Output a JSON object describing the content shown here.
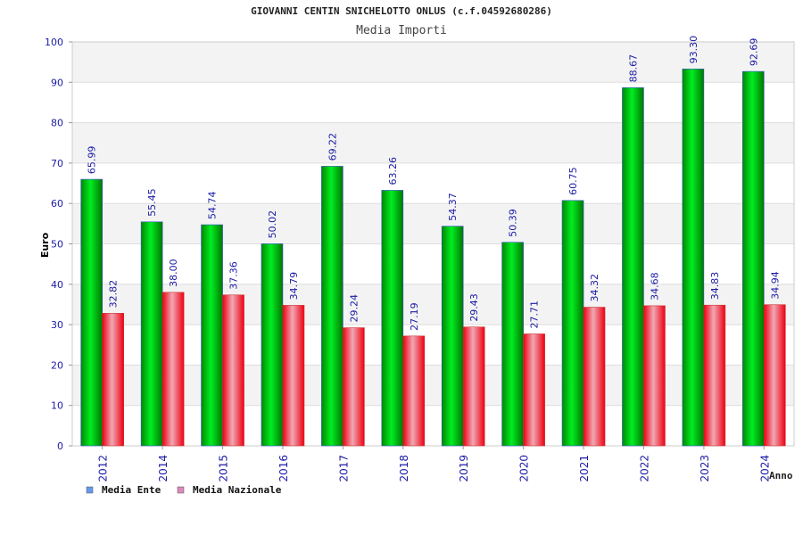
{
  "chart_data": {
    "type": "bar",
    "title": "GIOVANNI CENTIN SNICHELOTTO ONLUS (c.f.04592680286)",
    "subtitle": "Media Importi",
    "xlabel": "Anno",
    "ylabel": "Euro",
    "ylim": [
      0,
      100
    ],
    "yticks": [
      "0",
      "10",
      "20",
      "30",
      "40",
      "50",
      "60",
      "70",
      "80",
      "90",
      "100"
    ],
    "grid": true,
    "legend_position": "bottom-left",
    "categories": [
      "2012",
      "2014",
      "2015",
      "2016",
      "2017",
      "2018",
      "2019",
      "2020",
      "2021",
      "2022",
      "2023",
      "2024"
    ],
    "series": [
      {
        "name": "Media Ente",
        "legend_color": "#6699ee",
        "bar_color": "#00bb00",
        "values": [
          65.99,
          55.45,
          54.74,
          50.02,
          69.22,
          63.26,
          54.37,
          50.39,
          60.75,
          88.67,
          93.3,
          92.69
        ],
        "labels": [
          "65.99",
          "55.45",
          "54.74",
          "50.02",
          "69.22",
          "63.26",
          "54.37",
          "50.39",
          "60.75",
          "88.67",
          "93.30",
          "92.69"
        ]
      },
      {
        "name": "Media Nazionale",
        "legend_color": "#dd88bb",
        "bar_color": "#ee1122",
        "values": [
          32.82,
          38.0,
          37.36,
          34.79,
          29.24,
          27.19,
          29.43,
          27.71,
          34.32,
          34.68,
          34.83,
          34.94
        ],
        "labels": [
          "32.82",
          "38.00",
          "37.36",
          "34.79",
          "29.24",
          "27.19",
          "29.43",
          "27.71",
          "34.32",
          "34.68",
          "34.83",
          "34.94"
        ]
      }
    ]
  }
}
